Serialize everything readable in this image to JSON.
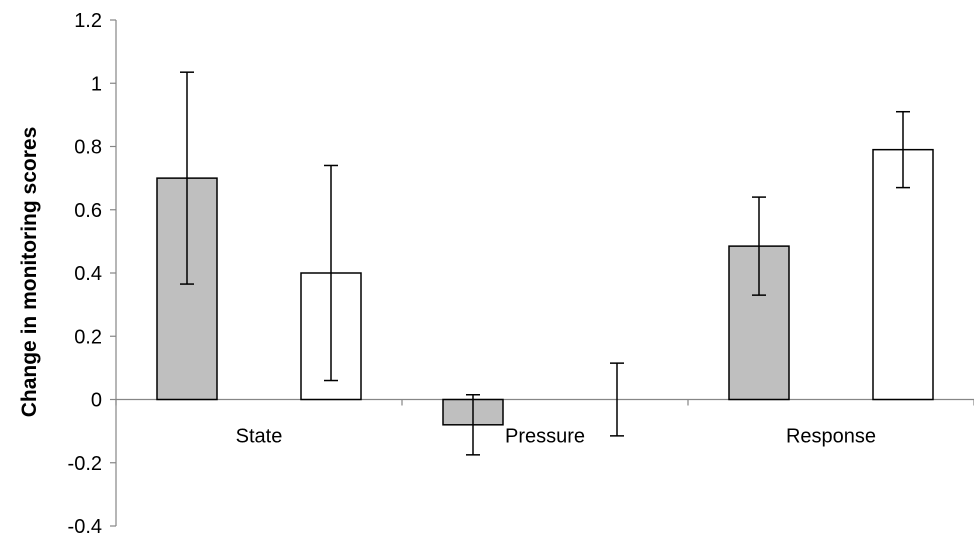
{
  "chart_data": {
    "type": "bar",
    "title": "",
    "xlabel": "",
    "ylabel": "Change in monitoring scores",
    "categories": [
      "State",
      "Pressure",
      "Response"
    ],
    "ylim": [
      -0.4,
      1.2
    ],
    "yticks": [
      -0.4,
      -0.2,
      0,
      0.2,
      0.4,
      0.6,
      0.8,
      1,
      1.2
    ],
    "ytick_labels": [
      "-0.4",
      "-0.2",
      "0",
      "0.2",
      "0.4",
      "0.6",
      "0.8",
      "1",
      "1.2"
    ],
    "grid": false,
    "legend": "none",
    "series": [
      {
        "color": "#bfbfbf",
        "values": [
          0.7,
          -0.08,
          0.485
        ],
        "error": [
          0.335,
          0.095,
          0.155
        ]
      },
      {
        "color": "#ffffff",
        "values": [
          0.4,
          0.0,
          0.79
        ],
        "error": [
          0.34,
          0.115,
          0.12
        ]
      }
    ]
  }
}
